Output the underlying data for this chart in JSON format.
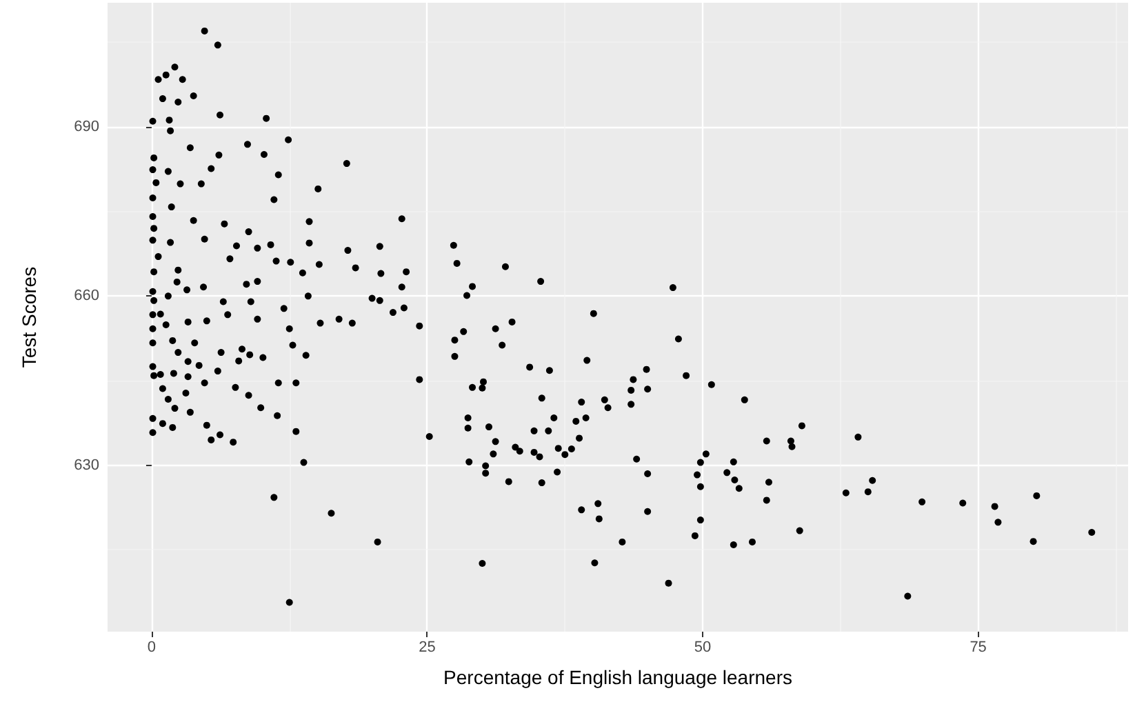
{
  "chart_data": {
    "type": "scatter",
    "xlabel": "Percentage of English language learners",
    "ylabel": "Test Scores",
    "xlim": [
      -4,
      88.6
    ],
    "ylim": [
      600.5,
      712
    ],
    "xticks": [
      0,
      25,
      50,
      75
    ],
    "yticks": [
      630,
      660,
      690
    ],
    "grid": true,
    "marker": "circle",
    "series": [
      {
        "color": "#000000",
        "x": [
          27.4,
          27.7,
          32.1,
          35.3,
          28.6,
          29.1,
          47.3,
          40.1,
          24.3,
          28.3,
          27.5,
          31.2,
          32.7,
          31.8,
          27.5,
          47.8,
          34.3,
          36.1,
          39.5,
          48.5,
          24.3,
          44.9,
          50.8,
          30.1,
          29.1,
          30.0,
          43.7,
          43.5,
          45.0,
          35.4,
          41.1,
          41.4,
          43.5,
          39.0,
          53.8,
          28.7,
          28.7,
          30.6,
          36.5,
          39.4,
          38.5,
          34.7,
          36.0,
          59.0,
          25.2,
          31.2,
          38.8,
          33.0,
          33.4,
          31.0,
          34.7,
          35.2,
          36.9,
          38.1,
          37.5,
          55.8,
          58.0,
          58.1,
          64.1,
          50.3,
          44.0,
          49.8,
          52.8,
          28.8,
          30.3,
          30.3,
          36.8,
          45.0,
          49.5,
          52.2,
          52.9,
          56.0,
          65.4,
          32.4,
          35.4,
          49.8,
          53.3,
          63.0,
          65.0,
          55.8,
          69.9,
          73.6,
          76.5,
          80.3,
          76.8,
          39.0,
          40.5,
          40.6,
          45.0,
          49.8,
          49.3,
          58.8,
          42.7,
          52.8,
          54.5,
          80.0,
          85.3,
          30.0,
          40.2,
          46.9,
          68.6,
          4.8,
          6.0,
          2.1,
          0.6,
          1.3,
          2.8,
          1.0,
          2.4,
          3.8,
          0.1,
          1.6,
          1.7,
          6.2,
          10.4,
          12.4,
          8.7,
          3.5,
          10.2,
          6.1,
          17.7,
          0.2,
          0.1,
          1.5,
          5.4,
          11.5,
          0.4,
          2.6,
          4.5,
          15.1,
          11.1,
          0.1,
          1.8,
          0.1,
          22.7,
          14.3,
          3.8,
          6.6,
          0.2,
          8.8,
          14.3,
          4.8,
          17.8,
          20.7,
          0.1,
          1.7,
          7.7,
          9.6,
          10.8,
          15.2,
          18.5,
          20.8,
          23.1,
          22.7,
          0.2,
          0.6,
          7.1,
          11.3,
          12.6,
          2.4,
          2.3,
          8.6,
          9.6,
          13.7,
          20.0,
          20.7,
          22.9,
          21.9,
          18.2,
          0.1,
          0.2,
          1.5,
          3.2,
          4.7,
          6.5,
          9.0,
          12.0,
          14.2,
          15.3,
          17.0,
          0.1,
          0.8,
          1.3,
          3.3,
          5.0,
          6.9,
          9.6,
          12.5,
          0.1,
          0.1,
          1.9,
          2.4,
          3.9,
          6.3,
          8.2,
          8.9,
          10.1,
          12.8,
          14.0,
          3.3,
          4.3,
          6.0,
          7.9,
          0.1,
          0.2,
          0.8,
          2.0,
          3.3,
          4.8,
          7.6,
          11.5,
          13.1,
          1.0,
          3.1,
          1.5,
          2.1,
          3.5,
          8.8,
          9.9,
          11.4,
          0.1,
          1.0,
          1.9,
          0.1,
          5.0,
          5.4,
          6.2,
          7.4,
          13.1,
          13.8,
          11.1,
          16.3,
          20.5,
          12.5
        ],
        "values": [
          669.0,
          665.8,
          665.2,
          662.6,
          660.1,
          661.7,
          661.5,
          656.9,
          654.7,
          653.7,
          652.2,
          654.2,
          655.4,
          651.3,
          649.3,
          652.4,
          647.4,
          646.8,
          648.6,
          645.9,
          645.2,
          647.0,
          644.3,
          644.8,
          643.8,
          643.7,
          645.2,
          643.3,
          643.5,
          641.9,
          641.6,
          640.2,
          640.8,
          641.2,
          641.6,
          638.4,
          636.6,
          636.8,
          638.4,
          638.4,
          637.8,
          636.1,
          636.1,
          637.0,
          635.1,
          634.2,
          634.8,
          633.2,
          632.5,
          632.0,
          632.3,
          631.5,
          633.0,
          632.9,
          631.9,
          634.3,
          634.3,
          633.3,
          635.0,
          632.0,
          631.1,
          630.5,
          630.6,
          630.6,
          629.9,
          628.6,
          628.8,
          628.5,
          628.3,
          628.7,
          627.4,
          627.0,
          627.3,
          627.1,
          626.9,
          626.2,
          625.9,
          625.1,
          625.3,
          623.8,
          623.5,
          623.3,
          622.7,
          624.6,
          619.9,
          622.1,
          623.2,
          620.5,
          621.8,
          620.3,
          617.5,
          618.4,
          616.4,
          615.9,
          616.4,
          616.5,
          618.1,
          612.6,
          612.7,
          609.1,
          606.8,
          707.0,
          704.5,
          700.6,
          698.4,
          699.2,
          698.4,
          695.0,
          694.4,
          695.5,
          691.0,
          691.2,
          689.3,
          692.1,
          691.5,
          687.7,
          686.9,
          686.3,
          685.1,
          685.0,
          683.5,
          684.5,
          682.4,
          682.1,
          682.6,
          681.5,
          680.1,
          679.9,
          679.9,
          679.0,
          677.1,
          677.4,
          675.8,
          674.1,
          673.7,
          673.2,
          673.4,
          672.8,
          672.0,
          671.4,
          669.4,
          670.1,
          668.1,
          668.8,
          669.9,
          669.5,
          668.9,
          668.5,
          669.1,
          665.6,
          665.0,
          664.0,
          664.3,
          661.6,
          664.3,
          667.0,
          666.6,
          666.2,
          666.0,
          664.6,
          662.5,
          662.1,
          662.6,
          664.1,
          659.6,
          659.2,
          657.9,
          657.1,
          655.2,
          660.8,
          659.2,
          660.0,
          661.1,
          661.6,
          659.0,
          659.0,
          657.8,
          660.0,
          655.2,
          655.9,
          656.7,
          656.8,
          654.9,
          655.4,
          655.6,
          656.7,
          655.9,
          654.2,
          654.2,
          651.7,
          652.1,
          650.0,
          651.7,
          650.0,
          650.6,
          649.6,
          649.1,
          651.3,
          649.5,
          648.4,
          647.7,
          646.7,
          648.5,
          647.5,
          645.9,
          646.1,
          646.3,
          645.7,
          644.6,
          643.8,
          644.6,
          644.6,
          643.6,
          642.8,
          641.7,
          640.1,
          639.4,
          642.4,
          640.2,
          638.8,
          638.3,
          637.4,
          636.7,
          635.8,
          637.1,
          634.5,
          635.4,
          634.1,
          636.0,
          630.5,
          624.3,
          621.5,
          616.4,
          605.7
        ]
      }
    ]
  }
}
